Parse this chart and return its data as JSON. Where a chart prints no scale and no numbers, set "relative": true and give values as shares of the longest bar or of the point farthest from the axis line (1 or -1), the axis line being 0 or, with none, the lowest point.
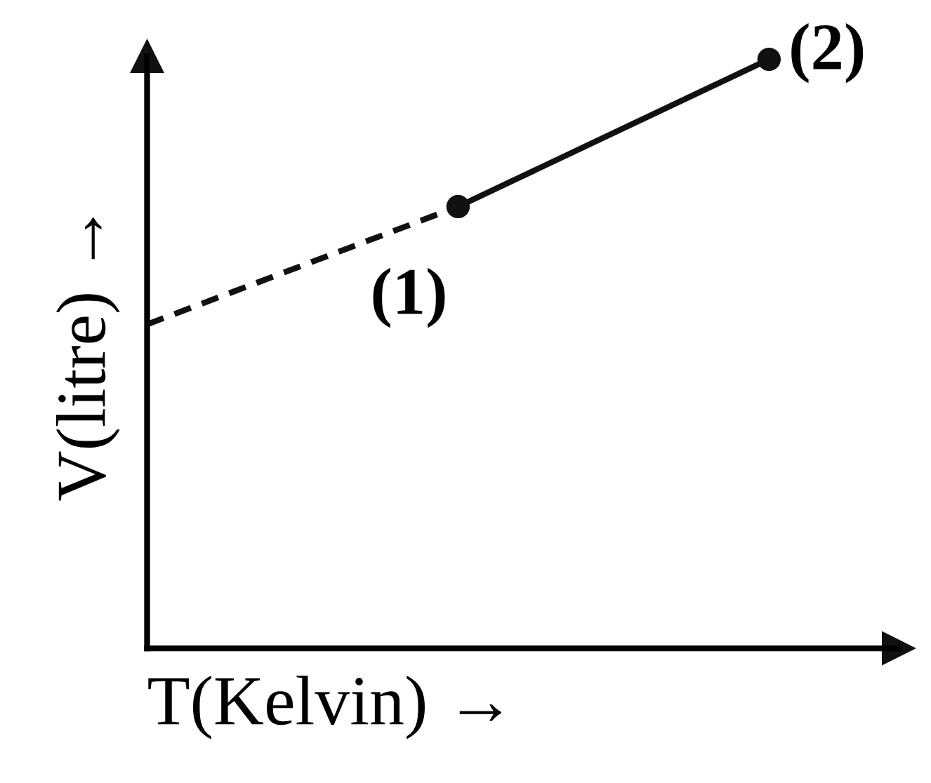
{
  "chart_data": {
    "type": "line",
    "relative": true,
    "xlabel": "T(Kelvin) →",
    "ylabel": "V(litre) →",
    "categories": [
      null,
      null,
      null
    ],
    "series": [
      {
        "color": "#111111",
        "values": [
          0.55,
          0.75,
          null
        ],
        "line_style": "dashed"
      },
      {
        "color": "#111111",
        "values": [
          null,
          0.75,
          1
        ],
        "line_style": "solid",
        "marker": "circle"
      }
    ],
    "annotations": [
      "(1)",
      "(2)"
    ]
  }
}
